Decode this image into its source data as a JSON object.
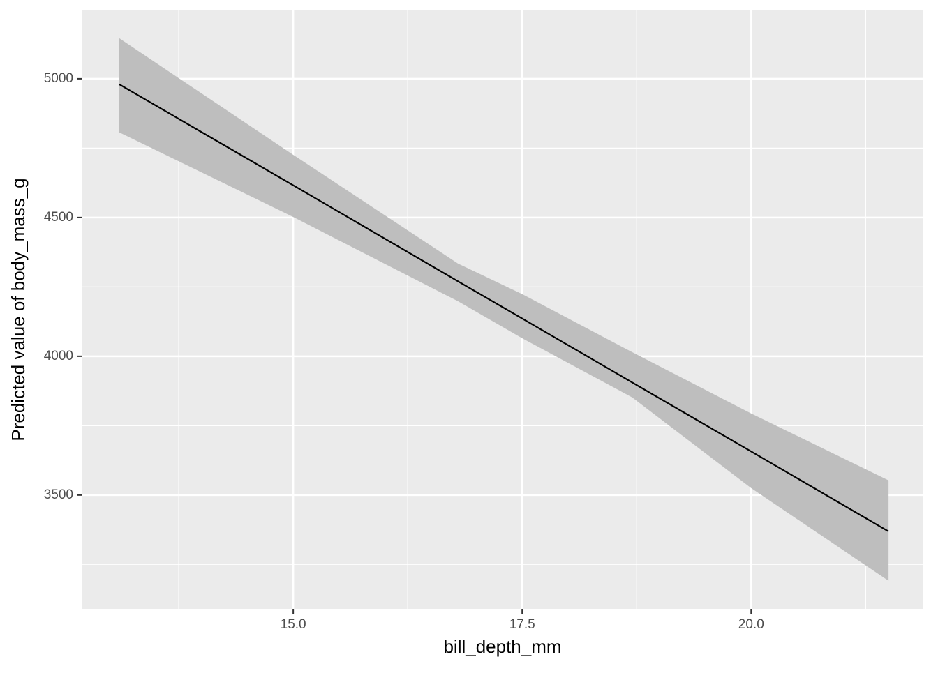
{
  "chart_data": {
    "type": "line",
    "x_label": "bill_depth_mm",
    "y_label": "Predicted value of body_mass_g",
    "x": [
      13.1,
      15,
      16.8,
      17.5,
      18.7,
      20,
      21.5
    ],
    "values": [
      4980,
      4616,
      4270,
      4136,
      3906,
      3657,
      3369
    ],
    "lower": [
      4807,
      4502,
      4198,
      4065,
      3852,
      3525,
      3191
    ],
    "upper": [
      5146,
      4726,
      4334,
      4224,
      4015,
      3794,
      3553
    ],
    "color": "#000000",
    "band_color": "#bebebe",
    "xlim": [
      12.69,
      21.88
    ],
    "ylim": [
      3090,
      5246
    ],
    "xticks": [
      {
        "value": 15,
        "label": "15.0"
      },
      17.5,
      {
        "value": 20,
        "label": "20.0"
      }
    ],
    "yticks": [
      3500,
      4000,
      4500,
      5000
    ],
    "grid": true
  }
}
